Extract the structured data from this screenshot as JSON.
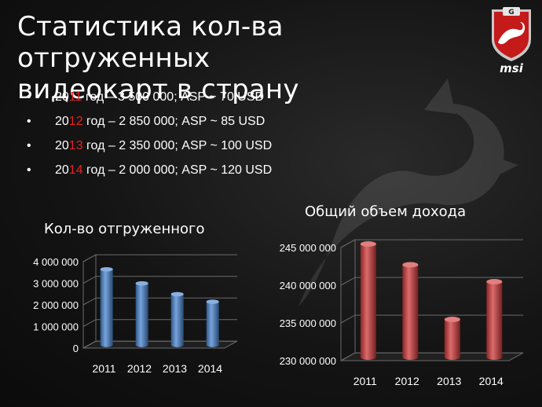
{
  "slide": {
    "title_line1": "Статистика кол-ва отгруженных",
    "title_line2": "видеокарт в страну"
  },
  "logo": {
    "brand": "msi",
    "badge_letter": "G",
    "icon": "msi-gaming-dragon-shield-icon"
  },
  "bullets": [
    {
      "year_prefix": "20",
      "year_suffix": "11",
      "rest": " год – 3 500 000; ASP ~ 70 USD"
    },
    {
      "year_prefix": "20",
      "year_suffix": "12",
      "rest": " год – 2 850 000; ASP ~ 85 USD"
    },
    {
      "year_prefix": "20",
      "year_suffix": "13",
      "rest": " год – 2 350 000; ASP ~ 100 USD"
    },
    {
      "year_prefix": "20",
      "year_suffix": "14",
      "rest": " год – 2 000 000; ASP ~ 120 USD"
    }
  ],
  "colors": {
    "accent": "#e8211f",
    "bar_blue": "#4a86d0",
    "bar_red": "#d23a3a"
  },
  "chart_data": [
    {
      "type": "bar",
      "title": "Кол-во отгруженного",
      "categories": [
        "2011",
        "2012",
        "2013",
        "2014"
      ],
      "values": [
        3500000,
        2850000,
        2350000,
        2000000
      ],
      "ylim": [
        0,
        4000000
      ],
      "yticks": [
        0,
        1000000,
        2000000,
        3000000,
        4000000
      ],
      "ytick_labels": [
        "0",
        "1 000 000",
        "2 000 000",
        "3 000 000",
        "4 000 000"
      ],
      "grid": true,
      "color": "#4a86d0"
    },
    {
      "type": "bar",
      "title": "Общий объем дохода",
      "categories": [
        "2011",
        "2012",
        "2013",
        "2014"
      ],
      "values": [
        245000000,
        242250000,
        235000000,
        240000000
      ],
      "ylim": [
        230000000,
        245000000
      ],
      "yticks": [
        230000000,
        235000000,
        240000000,
        245000000
      ],
      "ytick_labels": [
        "230 000 000",
        "235 000 000",
        "240 000 000",
        "245 000 000"
      ],
      "grid": true,
      "color": "#d23a3a"
    }
  ]
}
